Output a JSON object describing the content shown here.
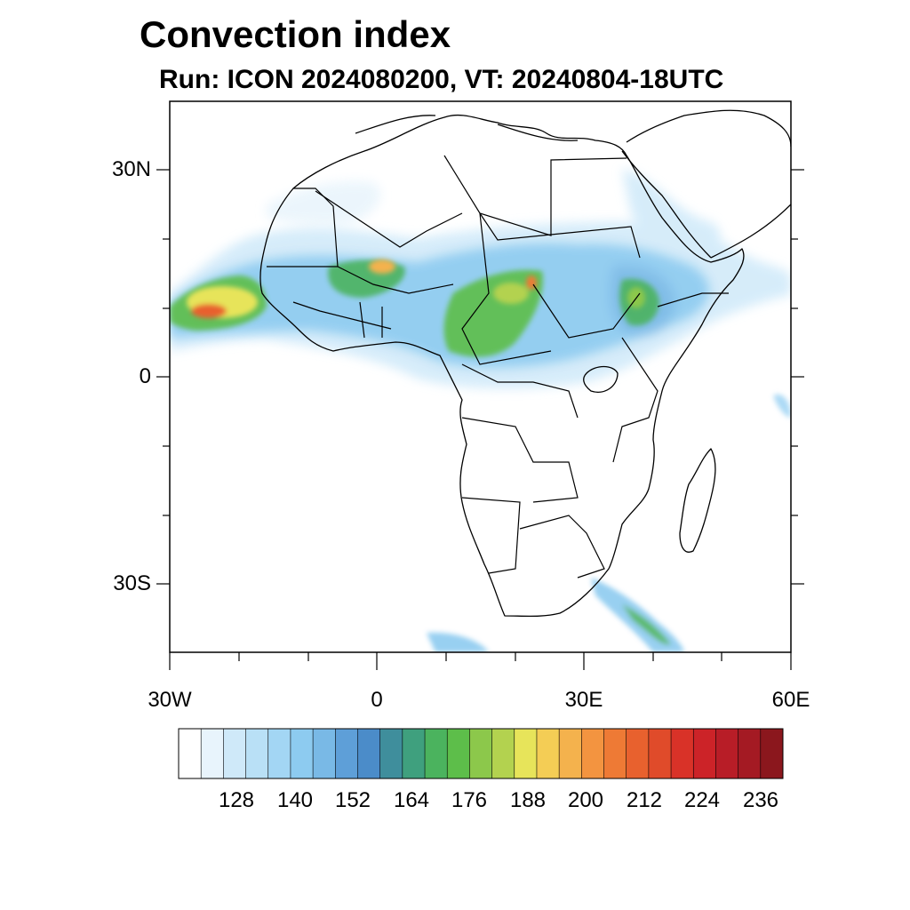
{
  "title": "Convection index",
  "subtitle": "Run: ICON 2024080200,  VT: 20240804-18UTC",
  "map": {
    "lon_range": [
      -30,
      60
    ],
    "lat_range": [
      -40,
      40
    ],
    "y_tick_labels": [
      "30N",
      "0",
      "30S"
    ],
    "x_tick_labels": [
      "30W",
      "0",
      "30E",
      "60E"
    ]
  },
  "colorbar": {
    "colors": [
      "#ffffff",
      "#e8f4fc",
      "#cfe9f9",
      "#b9e0f6",
      "#a3d6f4",
      "#8dcbf0",
      "#79b9e6",
      "#5e9fd8",
      "#4b8cc9",
      "#3f8e9c",
      "#3fa07e",
      "#4bb35e",
      "#5dbe4a",
      "#8cc84b",
      "#b3d24f",
      "#e7e45a",
      "#f4cd55",
      "#f4b24d",
      "#f39440",
      "#ee7a35",
      "#e8612e",
      "#e04b2a",
      "#d93228",
      "#cc2328",
      "#b81d27",
      "#a41a23",
      "#8b171d"
    ],
    "labels": [
      "128",
      "140",
      "152",
      "164",
      "176",
      "188",
      "200",
      "212",
      "224",
      "236"
    ]
  }
}
